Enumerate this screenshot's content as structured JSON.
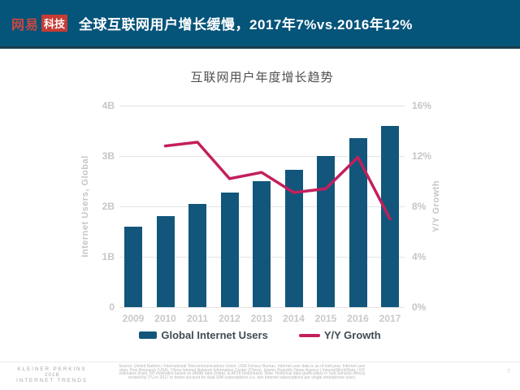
{
  "header": {
    "logo_brand": "网易",
    "logo_sub": "科技",
    "title": "全球互联网用户增长缓慢，2017年7%vs.2016年12%"
  },
  "chart": {
    "title": "互联网用户年度增长趋势",
    "left_axis": {
      "label": "Internet Users, Global",
      "ticks": [
        "4B",
        "3B",
        "2B",
        "1B",
        "0"
      ]
    },
    "right_axis": {
      "label": "Y/Y Growth",
      "ticks": [
        "16%",
        "12%",
        "8%",
        "4%",
        "0%"
      ]
    },
    "legend": [
      {
        "label": "Global Internet Users",
        "type": "bar"
      },
      {
        "label": "Y/Y Growth",
        "type": "line"
      }
    ]
  },
  "chart_data": {
    "type": "bar",
    "title": "互联网用户年度增长趋势",
    "categories": [
      "2009",
      "2010",
      "2011",
      "2012",
      "2013",
      "2014",
      "2015",
      "2016",
      "2017"
    ],
    "series": [
      {
        "name": "Global Internet Users",
        "type": "bar",
        "axis": "left",
        "unit": "B",
        "values": [
          1.6,
          1.8,
          2.05,
          2.27,
          2.5,
          2.73,
          3.0,
          3.35,
          3.6
        ]
      },
      {
        "name": "Y/Y Growth",
        "type": "line",
        "axis": "right",
        "unit": "%",
        "values": [
          null,
          12.8,
          13.1,
          10.2,
          10.7,
          9.1,
          9.4,
          11.9,
          7.0
        ]
      }
    ],
    "left_ylabel": "Internet Users, Global",
    "right_ylabel": "Y/Y Growth",
    "left_ylim": [
      0,
      4
    ],
    "right_ylim": [
      0,
      16
    ],
    "grid": true,
    "legend_position": "bottom"
  },
  "colors": {
    "header_bg": "#05547A",
    "bar": "#12567C",
    "line": "#C2205C",
    "gridline": "#E3E3E3"
  },
  "footer": {
    "brand_lines": [
      "KLEINER PERKINS",
      "2018",
      "INTERNET TRENDS"
    ],
    "source_lines": [
      "Source: United Nations / International Telecommunications Union, USA Census Bureau. Internet user data is as of mid-year. Internet user",
      "data: Pew Research (USA), China Internet Network Information Center (China), Islamic Republic News Agency / InternetWorldStats / KP",
      "estimates (Iran). KP estimates based on IAMAI data (India), & APJII (Indonesia). Note: Historical data (particularly in Sub-Saharan Africa)",
      "revised by ITU in 2017 to better account for dual-SIM subscriptions (i.e. two Internet subscriptions per single smartphone user)."
    ],
    "page_number": "7"
  }
}
